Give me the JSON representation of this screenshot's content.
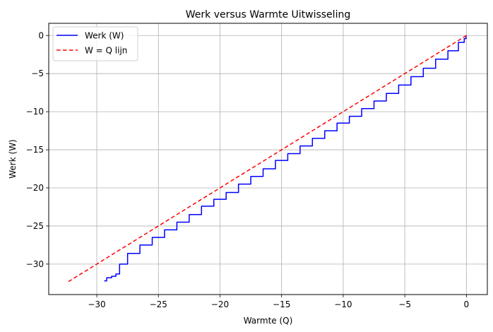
{
  "chart_data": {
    "type": "line",
    "title": "Werk versus Warmte Uitwisseling",
    "xlabel": "Warmte (Q)",
    "ylabel": "Werk (W)",
    "xlim": [
      -33.9,
      1.7
    ],
    "ylim": [
      -34.0,
      1.6
    ],
    "xticks": [
      -30,
      -25,
      -20,
      -15,
      -10,
      -5,
      0
    ],
    "yticks": [
      0,
      -5,
      -10,
      -15,
      -20,
      -25,
      -30
    ],
    "xtick_labels": [
      "−30",
      "−25",
      "−20",
      "−15",
      "−10",
      "−5",
      "0"
    ],
    "ytick_labels": [
      "0",
      "−5",
      "−10",
      "−15",
      "−20",
      "−25",
      "−30"
    ],
    "grid": true,
    "legend_position": "upper left",
    "series": [
      {
        "name": "Werk (W)",
        "color": "#0000ff",
        "style": "solid",
        "x": [
          0,
          -0.05,
          -0.3,
          -1,
          -2,
          -3,
          -4,
          -5,
          -6,
          -7,
          -8,
          -9,
          -10,
          -11,
          -12,
          -13,
          -14,
          -15,
          -16,
          -17,
          -18,
          -19,
          -20,
          -21,
          -22,
          -23,
          -24,
          -25,
          -26,
          -27,
          -28,
          -28.3,
          -28.6,
          -29.0,
          -29.4
        ],
        "y": [
          0,
          -0.4,
          -0.9,
          -2.0,
          -3.1,
          -4.3,
          -5.4,
          -6.5,
          -7.6,
          -8.6,
          -9.6,
          -10.6,
          -11.5,
          -12.5,
          -13.5,
          -14.5,
          -15.5,
          -16.4,
          -17.5,
          -18.5,
          -19.5,
          -20.6,
          -21.5,
          -22.4,
          -23.5,
          -24.5,
          -25.5,
          -26.5,
          -27.5,
          -28.6,
          -30.0,
          -31.3,
          -31.6,
          -31.8,
          -32.2
        ]
      },
      {
        "name": "W = Q lijn",
        "color": "#ff0000",
        "style": "dashed",
        "x": [
          -32.3,
          0
        ],
        "y": [
          -32.3,
          0
        ]
      }
    ]
  },
  "legend": {
    "items": [
      {
        "label": "Werk (W)"
      },
      {
        "label": "W = Q lijn"
      }
    ]
  }
}
